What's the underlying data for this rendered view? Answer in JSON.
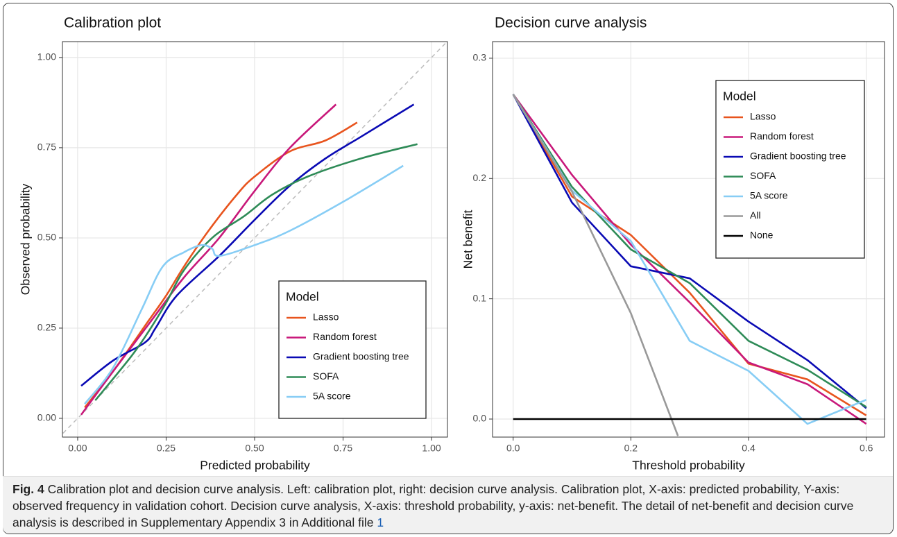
{
  "chart_data": [
    {
      "type": "line",
      "title": "Calibration plot",
      "x_label": "Predicted probability",
      "y_label": "Observed probability",
      "xlim": [
        -0.043,
        1.045
      ],
      "ylim": [
        -0.052,
        1.044
      ],
      "xticks": [
        {
          "value": 0,
          "label": "0.00"
        },
        {
          "value": 0.25,
          "label": "0.25"
        },
        {
          "value": 0.5,
          "label": "0.50"
        },
        {
          "value": 0.75,
          "label": "0.75"
        },
        {
          "value": 1,
          "label": "1.00"
        }
      ],
      "yticks": [
        {
          "value": 0,
          "label": "0.00"
        },
        {
          "value": 0.25,
          "label": "0.25"
        },
        {
          "value": 0.5,
          "label": "0.50"
        },
        {
          "value": 0.75,
          "label": "0.75"
        },
        {
          "value": 1,
          "label": "1.00"
        }
      ],
      "grid": true,
      "legend_title": "Model",
      "legend_position": "lower right",
      "series": [
        {
          "name": "Lasso",
          "color": "#e8541e",
          "x": [
            0.02,
            0.1,
            0.2,
            0.25,
            0.3,
            0.37,
            0.45,
            0.5,
            0.6,
            0.7,
            0.79
          ],
          "values": [
            0.03,
            0.13,
            0.27,
            0.34,
            0.42,
            0.52,
            0.62,
            0.67,
            0.74,
            0.77,
            0.82
          ]
        },
        {
          "name": "Random forest",
          "color": "#c8187a",
          "x": [
            0.01,
            0.1,
            0.2,
            0.3,
            0.4,
            0.5,
            0.6,
            0.73
          ],
          "values": [
            0.01,
            0.13,
            0.26,
            0.39,
            0.5,
            0.63,
            0.75,
            0.87
          ]
        },
        {
          "name": "Gradient boosting tree",
          "color": "#0a0ab4",
          "x": [
            0.01,
            0.1,
            0.19,
            0.22,
            0.28,
            0.4,
            0.5,
            0.6,
            0.7,
            0.8,
            0.95
          ],
          "values": [
            0.09,
            0.16,
            0.21,
            0.25,
            0.34,
            0.45,
            0.55,
            0.645,
            0.72,
            0.78,
            0.87
          ]
        },
        {
          "name": "SOFA",
          "color": "#2e8b57",
          "x": [
            0.05,
            0.15,
            0.2,
            0.25,
            0.3,
            0.38,
            0.47,
            0.55,
            0.65,
            0.8,
            0.96
          ],
          "values": [
            0.05,
            0.17,
            0.24,
            0.32,
            0.41,
            0.5,
            0.56,
            0.62,
            0.67,
            0.72,
            0.76
          ]
        },
        {
          "name": "5A score",
          "color": "#87cdf5",
          "x": [
            0.02,
            0.1,
            0.18,
            0.24,
            0.3,
            0.35,
            0.38,
            0.4,
            0.5,
            0.6,
            0.75,
            0.92
          ],
          "values": [
            0.04,
            0.14,
            0.3,
            0.42,
            0.46,
            0.48,
            0.47,
            0.45,
            0.48,
            0.52,
            0.6,
            0.7
          ]
        }
      ]
    },
    {
      "type": "line",
      "title": "Decision curve analysis",
      "x_label": "Threshold probability",
      "y_label": "Net benefit",
      "xlim": [
        -0.035,
        0.631
      ],
      "ylim": [
        -0.015,
        0.3138
      ],
      "xticks": [
        {
          "value": 0,
          "label": "0.0"
        },
        0.2,
        0.4,
        0.6
      ],
      "yticks": [
        {
          "value": 0,
          "label": "0.0"
        },
        0.1,
        0.2,
        0.3
      ],
      "grid": true,
      "legend_title": "Model",
      "legend_position": "upper right",
      "series": [
        {
          "name": "Lasso",
          "color": "#e8541e",
          "x": [
            0,
            0.1,
            0.2,
            0.3,
            0.4,
            0.5,
            0.6
          ],
          "values": [
            0.27,
            0.185,
            0.153,
            0.105,
            0.046,
            0.033,
            0.003
          ]
        },
        {
          "name": "Random forest",
          "color": "#c8187a",
          "x": [
            0,
            0.1,
            0.2,
            0.3,
            0.4,
            0.5,
            0.6
          ],
          "values": [
            0.27,
            0.203,
            0.145,
            0.097,
            0.047,
            0.029,
            -0.004
          ]
        },
        {
          "name": "Gradient boosting tree",
          "color": "#0a0ab4",
          "x": [
            0,
            0.1,
            0.2,
            0.3,
            0.4,
            0.5,
            0.6
          ],
          "values": [
            0.27,
            0.18,
            0.127,
            0.117,
            0.081,
            0.049,
            0.009
          ]
        },
        {
          "name": "SOFA",
          "color": "#2e8b57",
          "x": [
            0,
            0.1,
            0.2,
            0.3,
            0.4,
            0.5,
            0.6
          ],
          "values": [
            0.27,
            0.193,
            0.141,
            0.113,
            0.065,
            0.041,
            0.01
          ]
        },
        {
          "name": "5A score",
          "color": "#87cdf5",
          "x": [
            0,
            0.1,
            0.2,
            0.3,
            0.4,
            0.5,
            0.6
          ],
          "values": [
            0.27,
            0.19,
            0.148,
            0.065,
            0.04,
            -0.004,
            0.016
          ]
        },
        {
          "name": "All",
          "color": "#999999",
          "x": [
            0,
            0.1,
            0.2,
            0.28
          ],
          "values": [
            0.27,
            0.189,
            0.088,
            -0.014
          ]
        },
        {
          "name": "None",
          "color": "#000000",
          "x": [
            0,
            0.6
          ],
          "values": [
            0,
            0
          ]
        }
      ]
    }
  ],
  "caption": {
    "label": "Fig. 4",
    "text": "Calibration plot and decision curve analysis. Left: calibration plot, right: decision curve analysis. Calibration plot, X-axis: predicted probability, Y-axis: observed frequency in validation cohort. Decision curve analysis, X-axis: threshold probability, y-axis: net-benefit. The detail of net-benefit and decision curve analysis is described in Supplementary Appendix 3 in Additional file",
    "link": "1"
  }
}
